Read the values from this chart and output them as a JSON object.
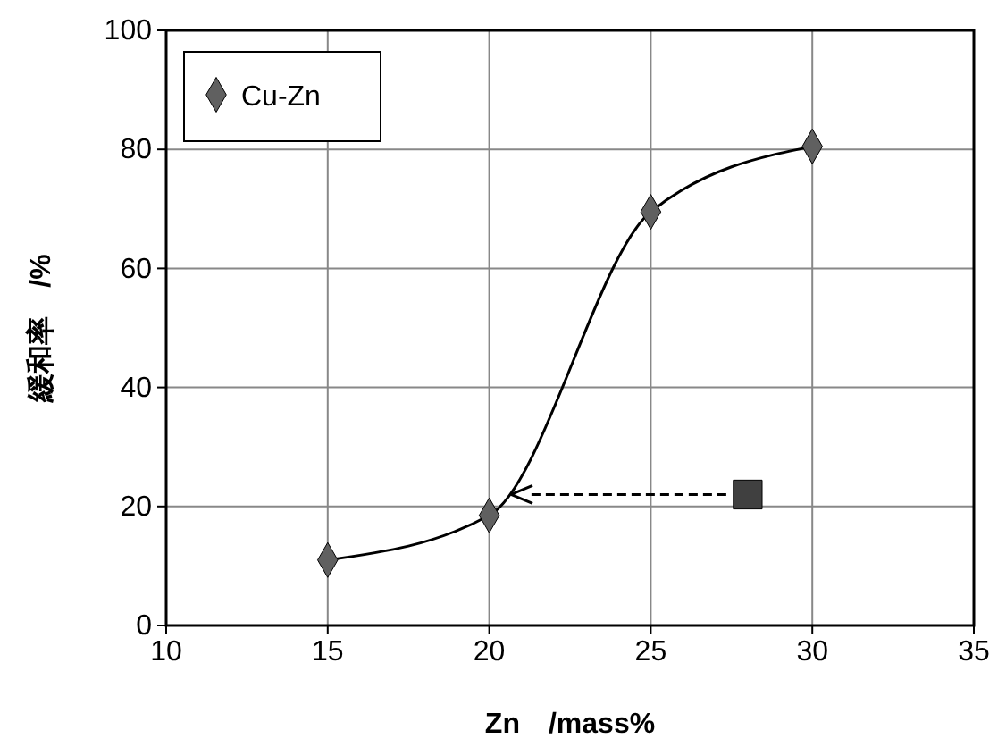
{
  "chart_data": {
    "type": "line",
    "xlabel": "Zn　/mass%",
    "ylabel": "緩和率　/%",
    "xlim": [
      10,
      35
    ],
    "xticks": [
      10,
      15,
      20,
      25,
      30,
      35
    ],
    "ylim": [
      0,
      100
    ],
    "yticks": [
      0,
      20,
      40,
      60,
      80,
      100
    ],
    "grid": true,
    "legend": "top left",
    "series": [
      {
        "type": "scatter",
        "marker": "square",
        "color": "#404040",
        "x": [
          28
        ],
        "values": [
          22
        ]
      },
      {
        "type": "line",
        "name": "Cu-Zn",
        "marker": "diamond",
        "color": "#606060",
        "x": [
          15,
          20,
          25,
          30
        ],
        "values": [
          11,
          18.5,
          69.5,
          80.5
        ]
      }
    ]
  }
}
